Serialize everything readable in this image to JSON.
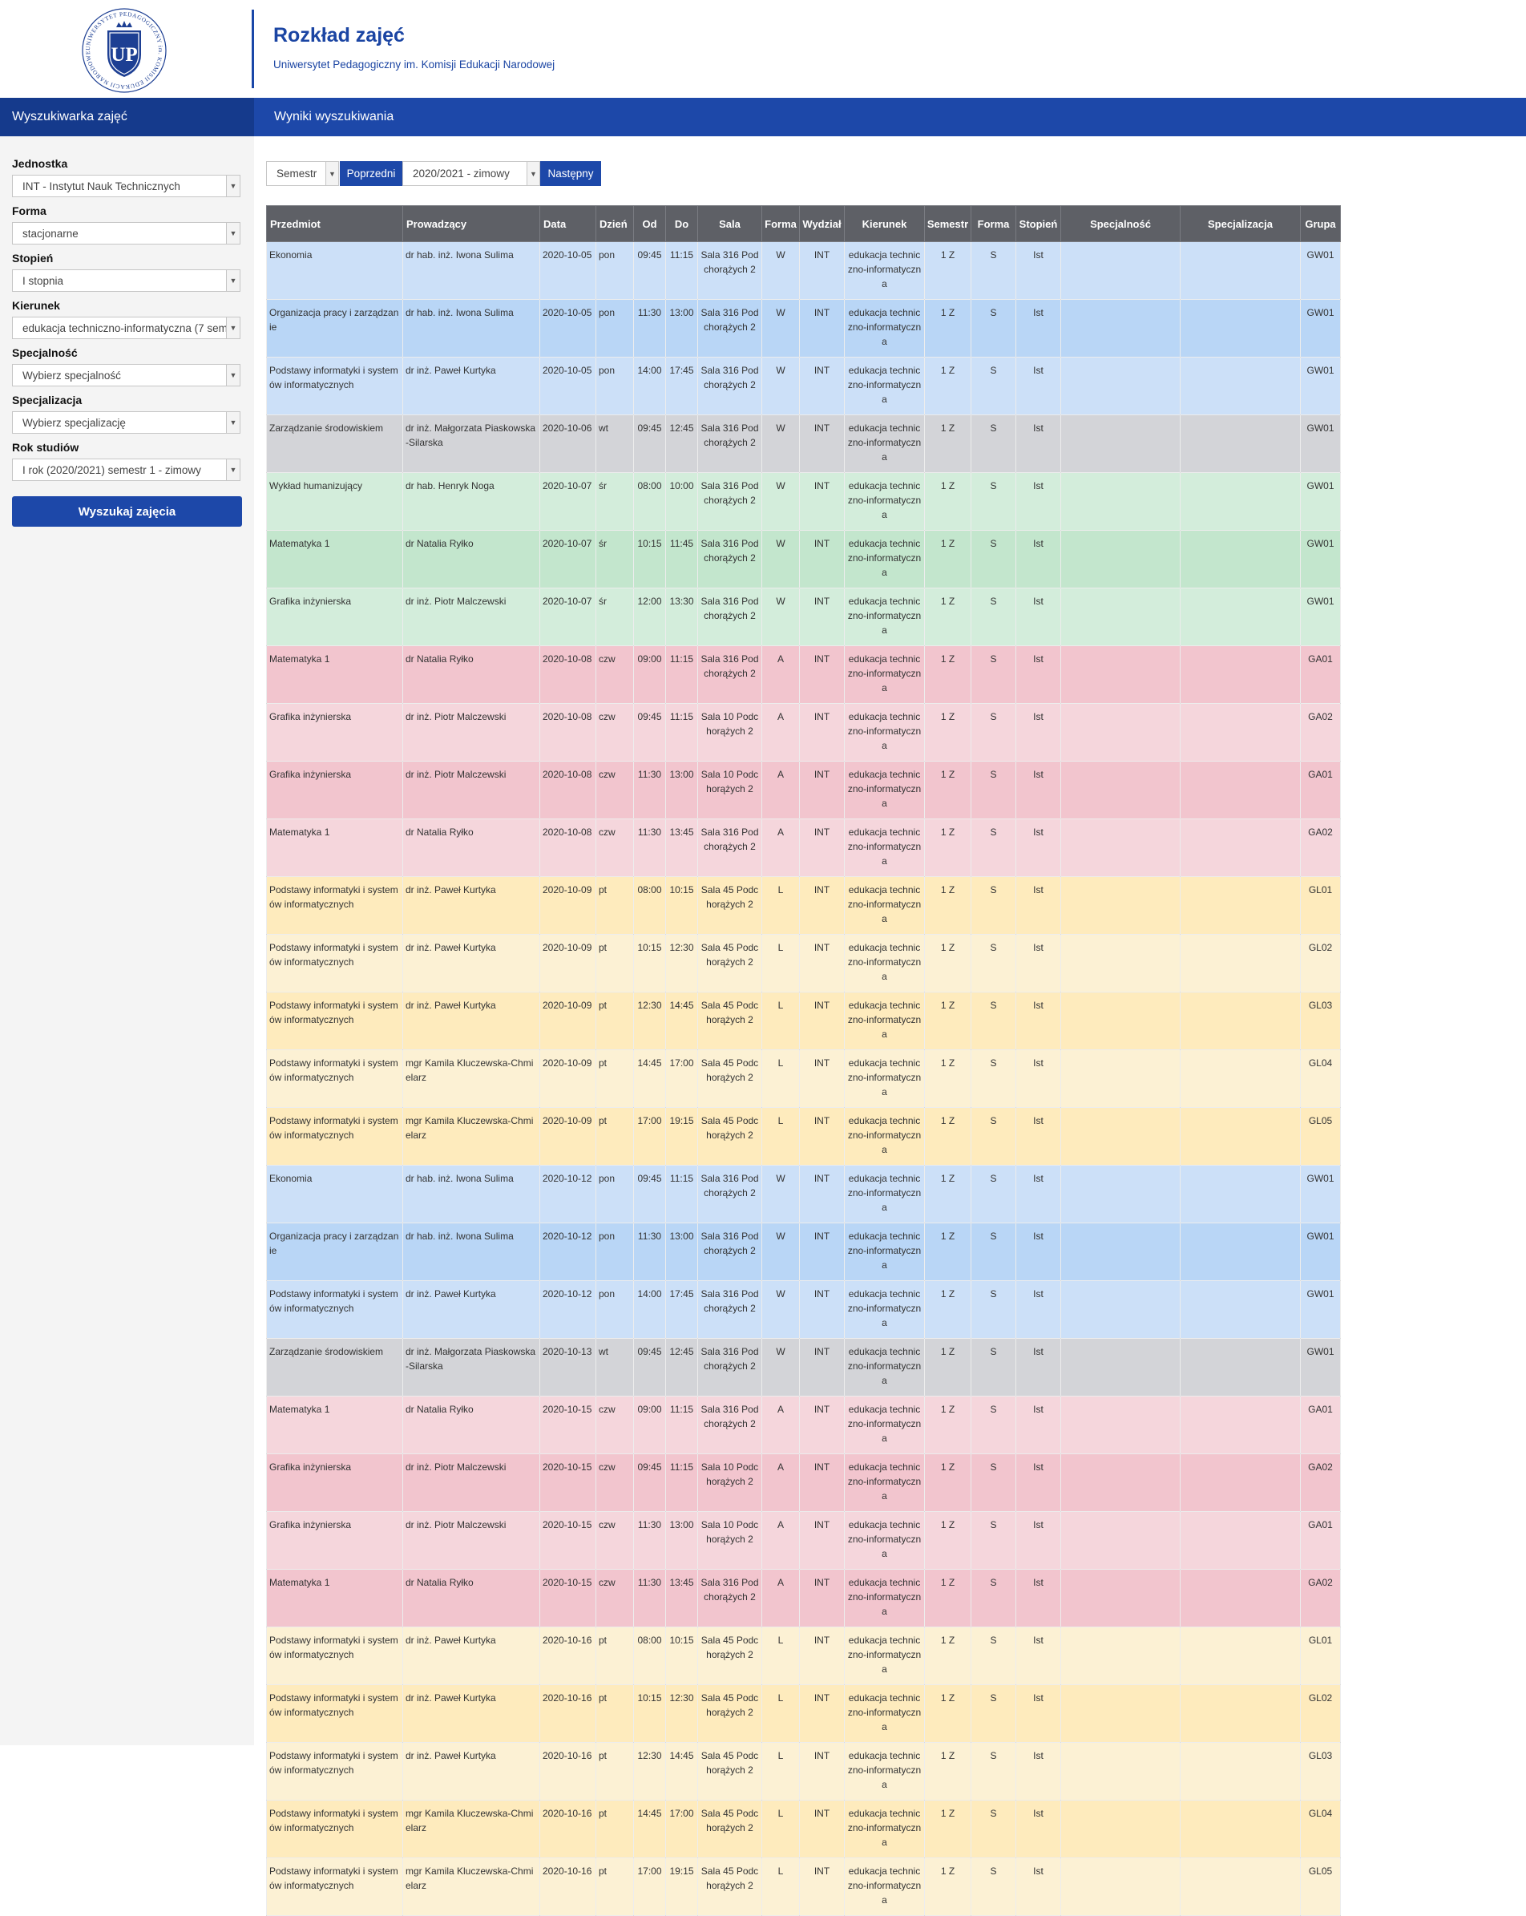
{
  "header": {
    "title": "Rozkład zajęć",
    "subtitle": "Uniwersytet Pedagogiczny im. Komisji Edukacji Narodowej",
    "logo_ring_text": "UNIWERSYTET PEDAGOGICZNY im. KOMISJI EDUKACJI NARODOWEJ",
    "logo_monogram": "UP"
  },
  "navbar": {
    "left": "Wyszukiwarka zajęć",
    "right": "Wyniki wyszukiwania"
  },
  "sidebar": {
    "fields": [
      {
        "label": "Jednostka",
        "value": "INT - Instytut Nauk Technicznych"
      },
      {
        "label": "Forma",
        "value": "stacjonarne"
      },
      {
        "label": "Stopień",
        "value": "I stopnia"
      },
      {
        "label": "Kierunek",
        "value": "edukacja techniczno-informatyczna (7 sem"
      },
      {
        "label": "Specjalność",
        "value": "Wybierz specjalność"
      },
      {
        "label": "Specjalizacja",
        "value": "Wybierz specjalizację"
      },
      {
        "label": "Rok studiów",
        "value": "I rok (2020/2021) semestr 1 - zimowy"
      }
    ],
    "search_button": "Wyszukaj zajęcia"
  },
  "semester_nav": {
    "period_type": "Semestr",
    "prev": "Poprzedni",
    "period": "2020/2021 - zimowy",
    "next": "Następny"
  },
  "table": {
    "columns": [
      "Przedmiot",
      "Prowadzący",
      "Data",
      "Dzień",
      "Od",
      "Do",
      "Sala",
      "Forma",
      "Wydział",
      "Kierunek",
      "Semestr",
      "Forma",
      "Stopień",
      "Specjalność",
      "Specjalizacja",
      "Grupa"
    ],
    "row_colors": {
      "w1": "#b9d6f6",
      "w2": "#cce0f8",
      "g1": "#d3d4d8",
      "gr1": "#c3e6cd",
      "gr2": "#d3eddb",
      "r1": "#f2c5ce",
      "r2": "#f5d6dc",
      "y1": "#feebbd",
      "y2": "#fcf1d4"
    },
    "rows": [
      {
        "color": "w2",
        "cells": [
          "Ekonomia",
          "dr hab. inż. Iwona Sulima",
          "2020-10-05",
          "pon",
          "09:45",
          "11:15",
          "Sala 316 Podchorążych 2",
          "W",
          "INT",
          "edukacja techniczno-informatyczna",
          "1 Z",
          "S",
          "Ist",
          "",
          "",
          "GW01"
        ]
      },
      {
        "color": "w1",
        "cells": [
          "Organizacja pracy i zarządzanie",
          "dr hab. inż. Iwona Sulima",
          "2020-10-05",
          "pon",
          "11:30",
          "13:00",
          "Sala 316 Podchorążych 2",
          "W",
          "INT",
          "edukacja techniczno-informatyczna",
          "1 Z",
          "S",
          "Ist",
          "",
          "",
          "GW01"
        ]
      },
      {
        "color": "w2",
        "cells": [
          "Podstawy informatyki i systemów informatycznych",
          "dr inż. Paweł Kurtyka",
          "2020-10-05",
          "pon",
          "14:00",
          "17:45",
          "Sala 316 Podchorążych 2",
          "W",
          "INT",
          "edukacja techniczno-informatyczna",
          "1 Z",
          "S",
          "Ist",
          "",
          "",
          "GW01"
        ]
      },
      {
        "color": "g1",
        "cells": [
          "Zarządzanie środowiskiem",
          "dr inż. Małgorzata Piaskowska-Silarska",
          "2020-10-06",
          "wt",
          "09:45",
          "12:45",
          "Sala 316 Podchorążych 2",
          "W",
          "INT",
          "edukacja techniczno-informatyczna",
          "1 Z",
          "S",
          "Ist",
          "",
          "",
          "GW01"
        ]
      },
      {
        "color": "gr2",
        "cells": [
          "Wykład humanizujący",
          "dr hab. Henryk Noga",
          "2020-10-07",
          "śr",
          "08:00",
          "10:00",
          "Sala 316 Podchorążych 2",
          "W",
          "INT",
          "edukacja techniczno-informatyczna",
          "1 Z",
          "S",
          "Ist",
          "",
          "",
          "GW01"
        ]
      },
      {
        "color": "gr1",
        "cells": [
          "Matematyka 1",
          "dr Natalia Ryłko",
          "2020-10-07",
          "śr",
          "10:15",
          "11:45",
          "Sala 316 Podchorążych 2",
          "W",
          "INT",
          "edukacja techniczno-informatyczna",
          "1 Z",
          "S",
          "Ist",
          "",
          "",
          "GW01"
        ]
      },
      {
        "color": "gr2",
        "cells": [
          "Grafika inżynierska",
          "dr inż. Piotr Malczewski",
          "2020-10-07",
          "śr",
          "12:00",
          "13:30",
          "Sala 316 Podchorążych 2",
          "W",
          "INT",
          "edukacja techniczno-informatyczna",
          "1 Z",
          "S",
          "Ist",
          "",
          "",
          "GW01"
        ]
      },
      {
        "color": "r1",
        "cells": [
          "Matematyka 1",
          "dr Natalia Ryłko",
          "2020-10-08",
          "czw",
          "09:00",
          "11:15",
          "Sala 316 Podchorążych 2",
          "A",
          "INT",
          "edukacja techniczno-informatyczna",
          "1 Z",
          "S",
          "Ist",
          "",
          "",
          "GA01"
        ]
      },
      {
        "color": "r2",
        "cells": [
          "Grafika inżynierska",
          "dr inż. Piotr Malczewski",
          "2020-10-08",
          "czw",
          "09:45",
          "11:15",
          "Sala 10 Podchorążych 2",
          "A",
          "INT",
          "edukacja techniczno-informatyczna",
          "1 Z",
          "S",
          "Ist",
          "",
          "",
          "GA02"
        ]
      },
      {
        "color": "r1",
        "cells": [
          "Grafika inżynierska",
          "dr inż. Piotr Malczewski",
          "2020-10-08",
          "czw",
          "11:30",
          "13:00",
          "Sala 10 Podchorążych 2",
          "A",
          "INT",
          "edukacja techniczno-informatyczna",
          "1 Z",
          "S",
          "Ist",
          "",
          "",
          "GA01"
        ]
      },
      {
        "color": "r2",
        "cells": [
          "Matematyka 1",
          "dr Natalia Ryłko",
          "2020-10-08",
          "czw",
          "11:30",
          "13:45",
          "Sala 316 Podchorążych 2",
          "A",
          "INT",
          "edukacja techniczno-informatyczna",
          "1 Z",
          "S",
          "Ist",
          "",
          "",
          "GA02"
        ]
      },
      {
        "color": "y1",
        "cells": [
          "Podstawy informatyki i systemów informatycznych",
          "dr inż. Paweł Kurtyka",
          "2020-10-09",
          "pt",
          "08:00",
          "10:15",
          "Sala 45 Podchorążych 2",
          "L",
          "INT",
          "edukacja techniczno-informatyczna",
          "1 Z",
          "S",
          "Ist",
          "",
          "",
          "GL01"
        ]
      },
      {
        "color": "y2",
        "cells": [
          "Podstawy informatyki i systemów informatycznych",
          "dr inż. Paweł Kurtyka",
          "2020-10-09",
          "pt",
          "10:15",
          "12:30",
          "Sala 45 Podchorążych 2",
          "L",
          "INT",
          "edukacja techniczno-informatyczna",
          "1 Z",
          "S",
          "Ist",
          "",
          "",
          "GL02"
        ]
      },
      {
        "color": "y1",
        "cells": [
          "Podstawy informatyki i systemów informatycznych",
          "dr inż. Paweł Kurtyka",
          "2020-10-09",
          "pt",
          "12:30",
          "14:45",
          "Sala 45 Podchorążych 2",
          "L",
          "INT",
          "edukacja techniczno-informatyczna",
          "1 Z",
          "S",
          "Ist",
          "",
          "",
          "GL03"
        ]
      },
      {
        "color": "y2",
        "cells": [
          "Podstawy informatyki i systemów informatycznych",
          "mgr Kamila Kluczewska-Chmielarz",
          "2020-10-09",
          "pt",
          "14:45",
          "17:00",
          "Sala 45 Podchorążych 2",
          "L",
          "INT",
          "edukacja techniczno-informatyczna",
          "1 Z",
          "S",
          "Ist",
          "",
          "",
          "GL04"
        ]
      },
      {
        "color": "y1",
        "cells": [
          "Podstawy informatyki i systemów informatycznych",
          "mgr Kamila Kluczewska-Chmielarz",
          "2020-10-09",
          "pt",
          "17:00",
          "19:15",
          "Sala 45 Podchorążych 2",
          "L",
          "INT",
          "edukacja techniczno-informatyczna",
          "1 Z",
          "S",
          "Ist",
          "",
          "",
          "GL05"
        ]
      },
      {
        "color": "w2",
        "cells": [
          "Ekonomia",
          "dr hab. inż. Iwona Sulima",
          "2020-10-12",
          "pon",
          "09:45",
          "11:15",
          "Sala 316 Podchorążych 2",
          "W",
          "INT",
          "edukacja techniczno-informatyczna",
          "1 Z",
          "S",
          "Ist",
          "",
          "",
          "GW01"
        ]
      },
      {
        "color": "w1",
        "cells": [
          "Organizacja pracy i zarządzanie",
          "dr hab. inż. Iwona Sulima",
          "2020-10-12",
          "pon",
          "11:30",
          "13:00",
          "Sala 316 Podchorążych 2",
          "W",
          "INT",
          "edukacja techniczno-informatyczna",
          "1 Z",
          "S",
          "Ist",
          "",
          "",
          "GW01"
        ]
      },
      {
        "color": "w2",
        "cells": [
          "Podstawy informatyki i systemów informatycznych",
          "dr inż. Paweł Kurtyka",
          "2020-10-12",
          "pon",
          "14:00",
          "17:45",
          "Sala 316 Podchorążych 2",
          "W",
          "INT",
          "edukacja techniczno-informatyczna",
          "1 Z",
          "S",
          "Ist",
          "",
          "",
          "GW01"
        ]
      },
      {
        "color": "g1",
        "cells": [
          "Zarządzanie środowiskiem",
          "dr inż. Małgorzata Piaskowska-Silarska",
          "2020-10-13",
          "wt",
          "09:45",
          "12:45",
          "Sala 316 Podchorążych 2",
          "W",
          "INT",
          "edukacja techniczno-informatyczna",
          "1 Z",
          "S",
          "Ist",
          "",
          "",
          "GW01"
        ]
      },
      {
        "color": "r2",
        "cells": [
          "Matematyka 1",
          "dr Natalia Ryłko",
          "2020-10-15",
          "czw",
          "09:00",
          "11:15",
          "Sala 316 Podchorążych 2",
          "A",
          "INT",
          "edukacja techniczno-informatyczna",
          "1 Z",
          "S",
          "Ist",
          "",
          "",
          "GA01"
        ]
      },
      {
        "color": "r1",
        "cells": [
          "Grafika inżynierska",
          "dr inż. Piotr Malczewski",
          "2020-10-15",
          "czw",
          "09:45",
          "11:15",
          "Sala 10 Podchorążych 2",
          "A",
          "INT",
          "edukacja techniczno-informatyczna",
          "1 Z",
          "S",
          "Ist",
          "",
          "",
          "GA02"
        ]
      },
      {
        "color": "r2",
        "cells": [
          "Grafika inżynierska",
          "dr inż. Piotr Malczewski",
          "2020-10-15",
          "czw",
          "11:30",
          "13:00",
          "Sala 10 Podchorążych 2",
          "A",
          "INT",
          "edukacja techniczno-informatyczna",
          "1 Z",
          "S",
          "Ist",
          "",
          "",
          "GA01"
        ]
      },
      {
        "color": "r1",
        "cells": [
          "Matematyka 1",
          "dr Natalia Ryłko",
          "2020-10-15",
          "czw",
          "11:30",
          "13:45",
          "Sala 316 Podchorążych 2",
          "A",
          "INT",
          "edukacja techniczno-informatyczna",
          "1 Z",
          "S",
          "Ist",
          "",
          "",
          "GA02"
        ]
      },
      {
        "color": "y2",
        "cells": [
          "Podstawy informatyki i systemów informatycznych",
          "dr inż. Paweł Kurtyka",
          "2020-10-16",
          "pt",
          "08:00",
          "10:15",
          "Sala 45 Podchorążych 2",
          "L",
          "INT",
          "edukacja techniczno-informatyczna",
          "1 Z",
          "S",
          "Ist",
          "",
          "",
          "GL01"
        ]
      },
      {
        "color": "y1",
        "cells": [
          "Podstawy informatyki i systemów informatycznych",
          "dr inż. Paweł Kurtyka",
          "2020-10-16",
          "pt",
          "10:15",
          "12:30",
          "Sala 45 Podchorążych 2",
          "L",
          "INT",
          "edukacja techniczno-informatyczna",
          "1 Z",
          "S",
          "Ist",
          "",
          "",
          "GL02"
        ]
      },
      {
        "color": "y2",
        "cells": [
          "Podstawy informatyki i systemów informatycznych",
          "dr inż. Paweł Kurtyka",
          "2020-10-16",
          "pt",
          "12:30",
          "14:45",
          "Sala 45 Podchorążych 2",
          "L",
          "INT",
          "edukacja techniczno-informatyczna",
          "1 Z",
          "S",
          "Ist",
          "",
          "",
          "GL03"
        ]
      },
      {
        "color": "y1",
        "cells": [
          "Podstawy informatyki i systemów informatycznych",
          "mgr Kamila Kluczewska-Chmielarz",
          "2020-10-16",
          "pt",
          "14:45",
          "17:00",
          "Sala 45 Podchorążych 2",
          "L",
          "INT",
          "edukacja techniczno-informatyczna",
          "1 Z",
          "S",
          "Ist",
          "",
          "",
          "GL04"
        ]
      },
      {
        "color": "y2",
        "cells": [
          "Podstawy informatyki i systemów informatycznych",
          "mgr Kamila Kluczewska-Chmielarz",
          "2020-10-16",
          "pt",
          "17:00",
          "19:15",
          "Sala 45 Podchorążych 2",
          "L",
          "INT",
          "edukacja techniczno-informatyczna",
          "1 Z",
          "S",
          "Ist",
          "",
          "",
          "GL05"
        ]
      }
    ]
  }
}
